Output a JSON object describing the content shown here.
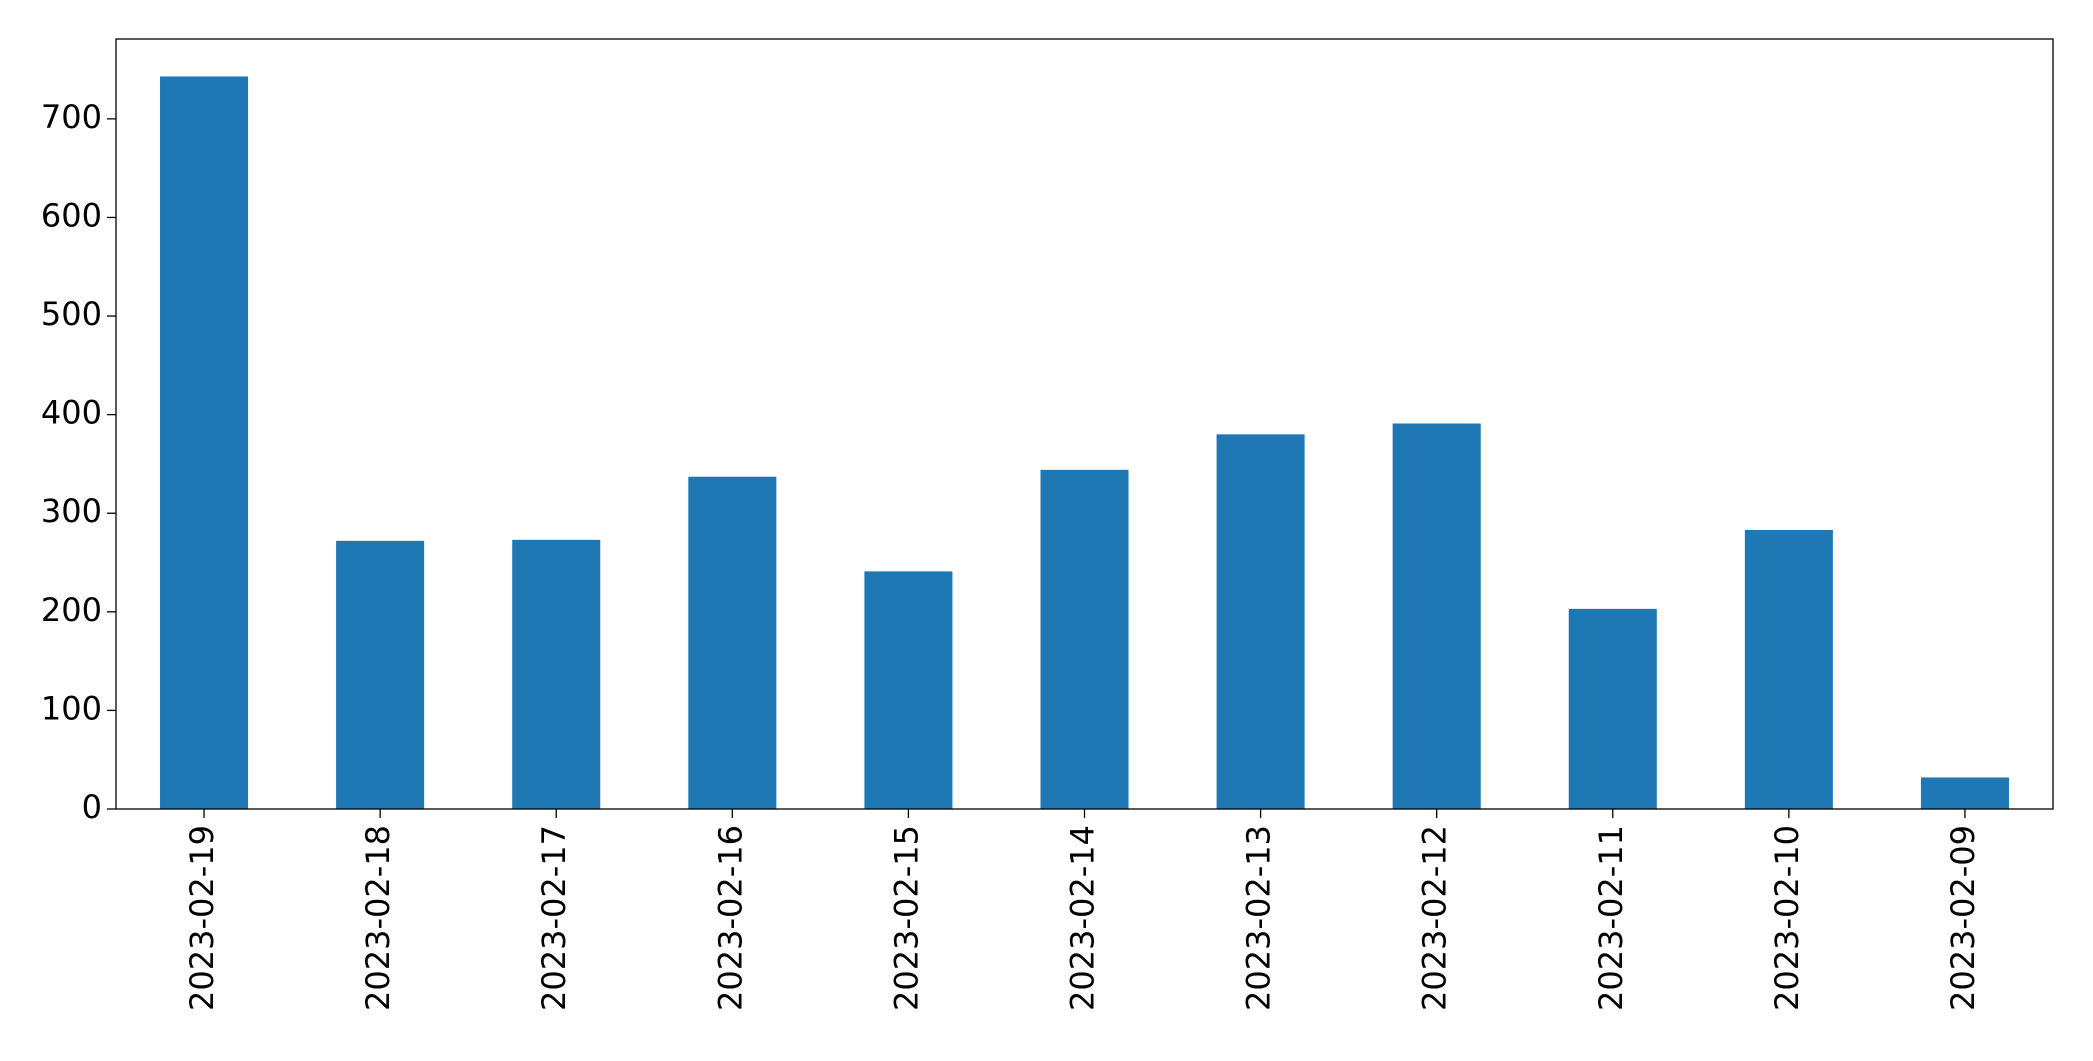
{
  "chart_data": {
    "type": "bar",
    "categories": [
      "2023-02-19",
      "2023-02-18",
      "2023-02-17",
      "2023-02-16",
      "2023-02-15",
      "2023-02-14",
      "2023-02-13",
      "2023-02-12",
      "2023-02-11",
      "2023-02-10",
      "2023-02-09"
    ],
    "values": [
      743,
      272,
      273,
      337,
      241,
      344,
      380,
      391,
      203,
      283,
      32
    ],
    "color": "#1f77b4",
    "ylim": [
      0,
      781
    ],
    "yticks": [
      0,
      100,
      200,
      300,
      400,
      500,
      600,
      700
    ],
    "grid": false
  }
}
